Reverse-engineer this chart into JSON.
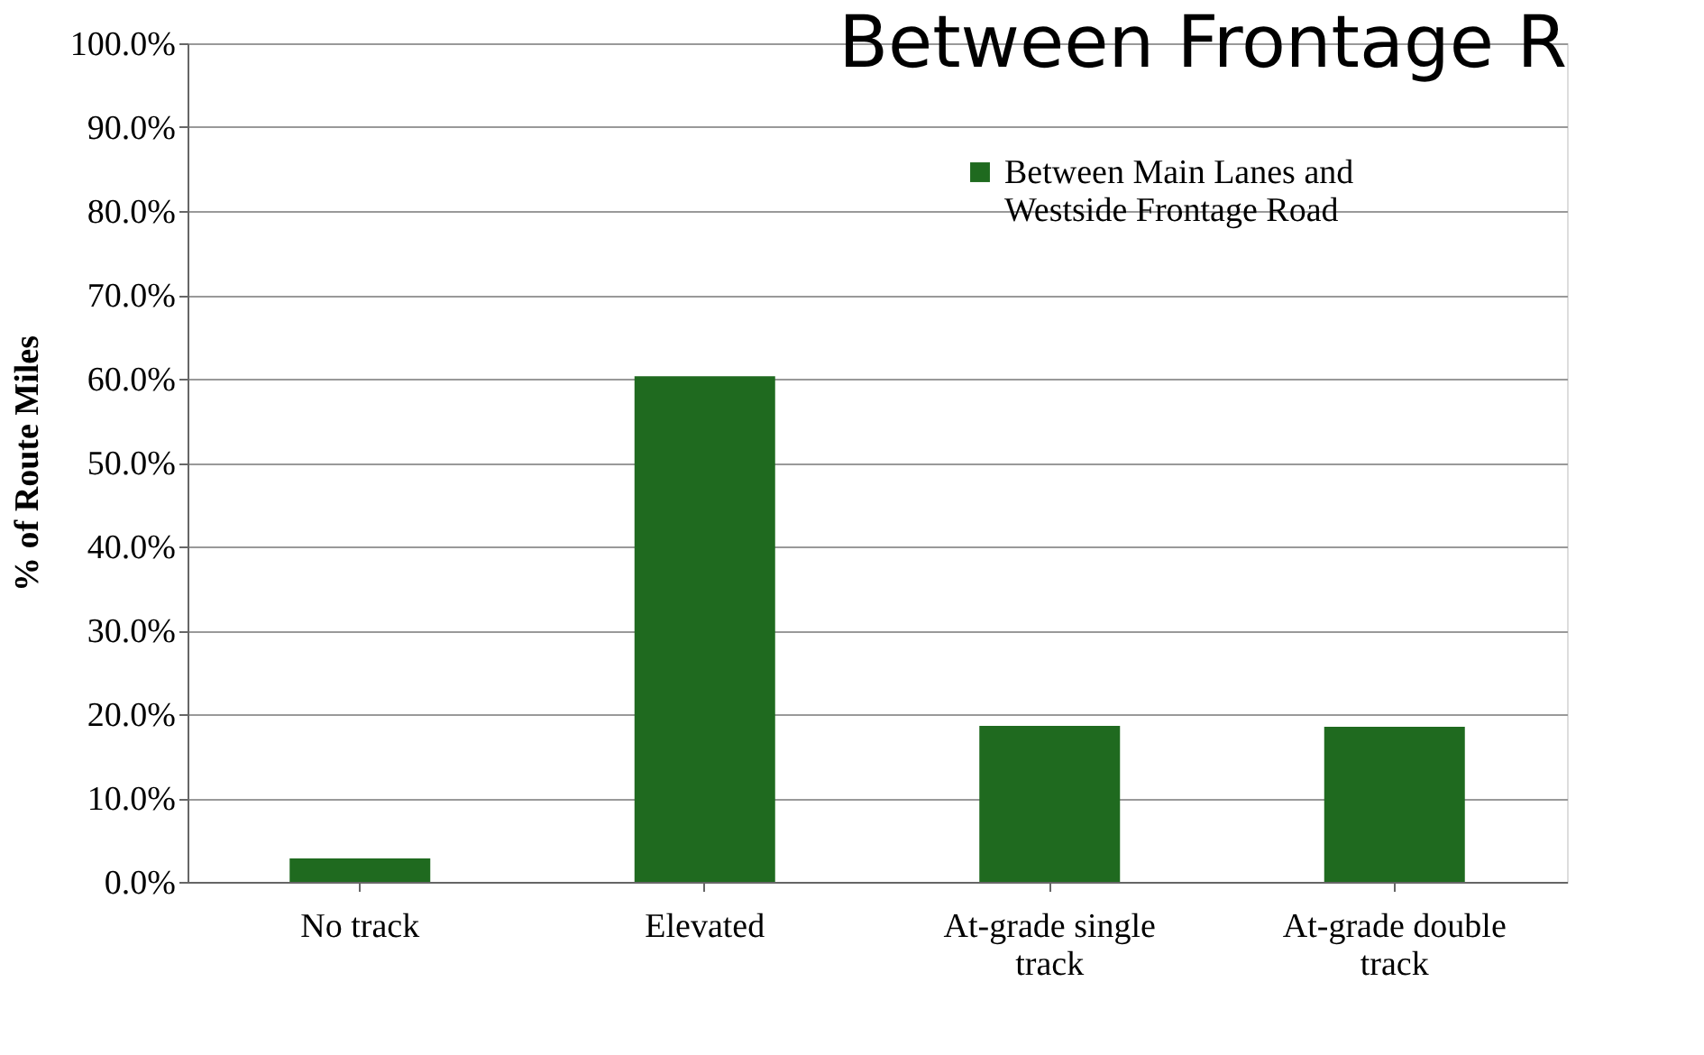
{
  "chart_data": {
    "type": "bar",
    "title": "Between Frontage R",
    "ylabel": "% of Route Miles",
    "categories": [
      "No track",
      "Elevated",
      "At-grade single track",
      "At-grade double track"
    ],
    "series": [
      {
        "name": "Between Main Lanes and Westside Frontage Road",
        "color": "#1f6a1f",
        "values": [
          2.8,
          60.3,
          18.6,
          18.5
        ]
      }
    ],
    "ylim": [
      0,
      100
    ],
    "yticks": [
      {
        "value": 0,
        "label": "0.0%"
      },
      {
        "value": 10,
        "label": "10.0%"
      },
      {
        "value": 20,
        "label": "20.0%"
      },
      {
        "value": 30,
        "label": "30.0%"
      },
      {
        "value": 40,
        "label": "40.0%"
      },
      {
        "value": 50,
        "label": "50.0%"
      },
      {
        "value": 60,
        "label": "60.0%"
      },
      {
        "value": 70,
        "label": "70.0%"
      },
      {
        "value": 80,
        "label": "80.0%"
      },
      {
        "value": 90,
        "label": "90.0%"
      },
      {
        "value": 100,
        "label": "100.0%"
      }
    ],
    "grid": "y",
    "legend": "top right"
  }
}
